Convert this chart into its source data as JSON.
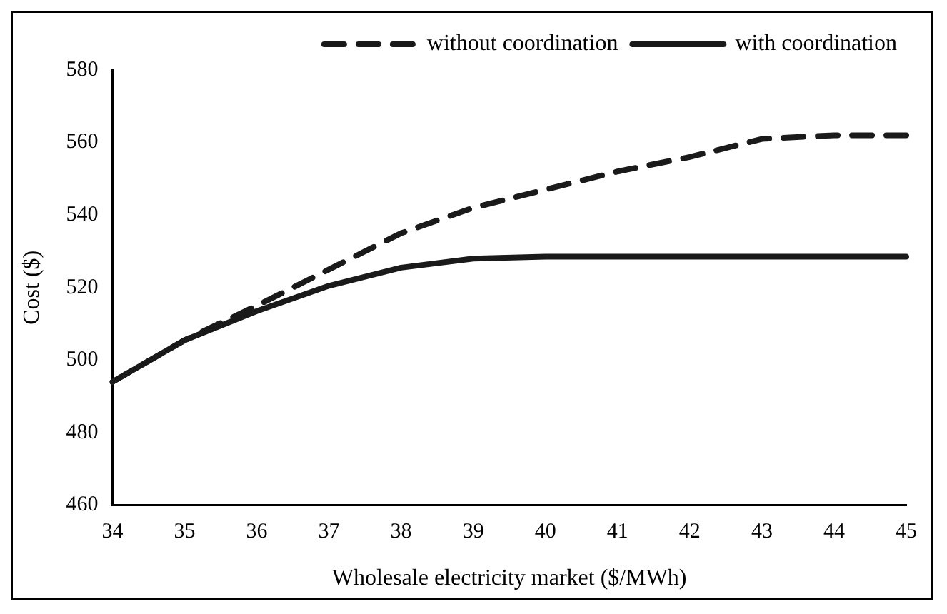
{
  "chart_data": {
    "type": "line",
    "xlabel": "Wholesale electricity market ($/MWh)",
    "ylabel": "Cost ($)",
    "categories": [
      "34",
      "35",
      "36",
      "37",
      "38",
      "39",
      "40",
      "41",
      "42",
      "43",
      "44",
      "45"
    ],
    "series": [
      {
        "name": "without coordination",
        "color": "#1a1a1a",
        "line_style": "dashed",
        "values": [
          494,
          505.5,
          515,
          525,
          535,
          542,
          547,
          552,
          556,
          561,
          562,
          562
        ]
      },
      {
        "name": "with coordination",
        "color": "#1a1a1a",
        "line_style": "solid",
        "values": [
          494,
          505.5,
          513.5,
          520.5,
          525.5,
          528,
          528.5,
          528.5,
          528.5,
          528.5,
          528.5,
          528.5
        ]
      }
    ],
    "ylim": [
      460,
      580
    ],
    "yticks": [
      460,
      480,
      500,
      520,
      540,
      560,
      580
    ],
    "grid": false,
    "legend": "top",
    "marker": "none"
  }
}
